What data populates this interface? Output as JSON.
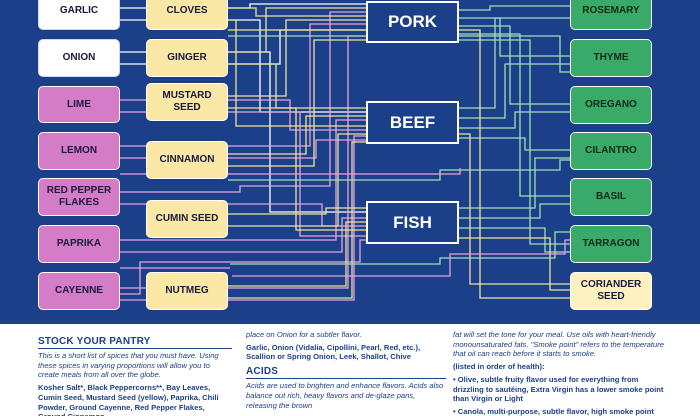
{
  "diagram": {
    "meats": [
      "PORK",
      "BEEF",
      "FISH"
    ],
    "left_column": [
      "GARLIC",
      "ONION",
      "LIME",
      "LEMON",
      "RED PEPPER FLAKES",
      "PAPRIKA",
      "CAYENNE"
    ],
    "middle_column": [
      "CLOVES",
      "GINGER",
      "MUSTARD SEED",
      "CINNAMON",
      "CUMIN SEED",
      "NUTMEG"
    ],
    "right_column": [
      "ROSEMARY",
      "THYME",
      "OREGANO",
      "CILANTRO",
      "BASIL",
      "TARRAGON",
      "CORIANDER SEED"
    ],
    "colors": {
      "background": "#1b3f88",
      "pink_box": "#d47cc7",
      "cream_box": "#fbe8a6",
      "green_box": "#3aaa69",
      "line_pink": "#e7a3de",
      "line_yellow": "#f1e39a",
      "line_green": "#9fe0b3"
    }
  },
  "info": {
    "stock_pantry": {
      "heading": "STOCK YOUR PANTRY",
      "intro": "This is a short list of spices that you must have. Using these spices in varying proportions will allow you to create meals from all over the globe.",
      "list": "Kosher Salt*, Black Peppercorns**, Bay Leaves, Cumin Seed, Mustard Seed (yellow), Paprika, Chili Powder, Ground Cayenne, Red Pepper Flakes, Ground Cinnamon,"
    },
    "aromatics": {
      "text": "place on Onion for a subtler flavor.",
      "list": "Garlic, Onion (Vidalia, Cipollini, Pearl, Red, etc.), Scallion or Spring Onion, Leek, Shallot, Chive"
    },
    "acids": {
      "heading": "ACIDS",
      "text": "Acids are used to brighten and enhance flavors. Acids also balance out rich, heavy flavors and de-glaze pans, releasing the brown"
    },
    "fats": {
      "text": "fat will set the tone for your meal. Use oils with heart-friendly monounsaturated fats. \"Smoke point\" refers to the temperature that oil can reach before it starts to smoke.",
      "list_note": "(listed in order of health):",
      "item1": "• Olive, subtle fruity flavor used for everything from drizzling to sautéing, Extra Virgin has a lower smoke point than Virgin or Light",
      "item2": "• Canola, multi-purpose, subtle flavor, high smoke point"
    }
  }
}
